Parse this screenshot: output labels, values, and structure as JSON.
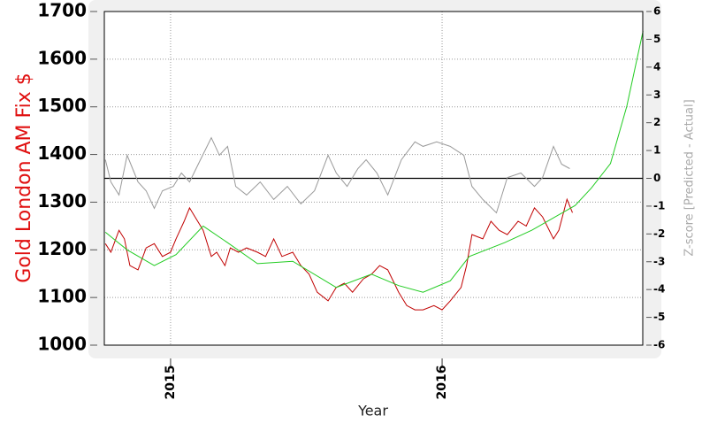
{
  "chart_data": {
    "type": "line",
    "xlabel": "Year",
    "ylabel": "Gold London AM Fix $",
    "y2label": "Z-score [Predicted - Actual]",
    "xlim": [
      2014.756,
      2016.739
    ],
    "xticks": [
      2015,
      2016
    ],
    "ylim": [
      1000,
      1700
    ],
    "yticks": [
      1000,
      1100,
      1200,
      1300,
      1400,
      1500,
      1600,
      1700
    ],
    "y2lim": [
      -6,
      6
    ],
    "y2ticks": [
      -6,
      -5,
      -4,
      -3,
      -2,
      -1,
      0,
      1,
      2,
      3,
      4,
      5,
      6
    ],
    "grid": true,
    "series": [
      {
        "color": "#c00000",
        "x": [
          2014.76,
          2014.78,
          2014.81,
          2014.83,
          2014.85,
          2014.88,
          2014.91,
          2014.94,
          2014.97,
          2015.0,
          2015.02,
          2015.05,
          2015.07,
          2015.09,
          2015.12,
          2015.15,
          2015.17,
          2015.2,
          2015.22,
          2015.25,
          2015.28,
          2015.32,
          2015.35,
          2015.38,
          2015.41,
          2015.45,
          2015.48,
          2015.51,
          2015.54,
          2015.58,
          2015.61,
          2015.64,
          2015.67,
          2015.71,
          2015.74,
          2015.77,
          2015.8,
          2015.84,
          2015.87,
          2015.9,
          2015.93,
          2015.97,
          2016.0,
          2016.03,
          2016.07,
          2016.09,
          2016.11,
          2016.15,
          2016.18,
          2016.21,
          2016.24,
          2016.28,
          2016.31,
          2016.34,
          2016.37,
          2016.41,
          2016.43,
          2016.46,
          2016.48
        ],
        "values": [
          1213,
          1195,
          1241,
          1223,
          1167,
          1158,
          1204,
          1213,
          1186,
          1195,
          1223,
          1260,
          1288,
          1269,
          1241,
          1186,
          1195,
          1167,
          1204,
          1195,
          1204,
          1195,
          1186,
          1223,
          1186,
          1195,
          1167,
          1149,
          1111,
          1093,
          1121,
          1130,
          1111,
          1139,
          1149,
          1167,
          1158,
          1111,
          1083,
          1074,
          1074,
          1083,
          1074,
          1093,
          1121,
          1167,
          1232,
          1223,
          1260,
          1241,
          1232,
          1260,
          1250,
          1288,
          1269,
          1223,
          1241,
          1306,
          1278
        ]
      },
      {
        "color": "#22cc22",
        "x": [
          2014.76,
          2014.84,
          2014.94,
          2015.02,
          2015.12,
          2015.21,
          2015.32,
          2015.45,
          2015.61,
          2015.74,
          2015.84,
          2015.93,
          2016.03,
          2016.1,
          2016.23,
          2016.33,
          2016.49,
          2016.55,
          2016.62,
          2016.68,
          2016.74
        ],
        "values": [
          1237,
          1200,
          1167,
          1190,
          1250,
          1215,
          1171,
          1176,
          1121,
          1149,
          1125,
          1111,
          1135,
          1186,
          1215,
          1241,
          1293,
          1330,
          1381,
          1501,
          1659
        ]
      },
      {
        "color": "#999999",
        "axis": "y2",
        "x": [
          2014.76,
          2014.78,
          2014.81,
          2014.84,
          2014.88,
          2014.91,
          2014.94,
          2014.97,
          2015.01,
          2015.04,
          2015.07,
          2015.11,
          2015.15,
          2015.18,
          2015.21,
          2015.24,
          2015.28,
          2015.33,
          2015.38,
          2015.43,
          2015.48,
          2015.53,
          2015.58,
          2015.61,
          2015.65,
          2015.69,
          2015.72,
          2015.76,
          2015.8,
          2015.85,
          2015.9,
          2015.93,
          2015.98,
          2016.03,
          2016.08,
          2016.11,
          2016.15,
          2016.2,
          2016.24,
          2016.29,
          2016.34,
          2016.37,
          2016.41,
          2016.44,
          2016.47
        ],
        "values": [
          0.67,
          -0.13,
          -0.6,
          0.83,
          -0.13,
          -0.45,
          -1.08,
          -0.45,
          -0.29,
          0.19,
          -0.13,
          0.67,
          1.46,
          0.83,
          1.15,
          -0.29,
          -0.6,
          -0.13,
          -0.76,
          -0.29,
          -0.92,
          -0.45,
          0.83,
          0.19,
          -0.29,
          0.35,
          0.67,
          0.19,
          -0.6,
          0.67,
          1.31,
          1.15,
          1.31,
          1.15,
          0.83,
          -0.29,
          -0.76,
          -1.24,
          0.03,
          0.19,
          -0.29,
          0.03,
          1.15,
          0.51,
          0.35
        ]
      }
    ]
  }
}
